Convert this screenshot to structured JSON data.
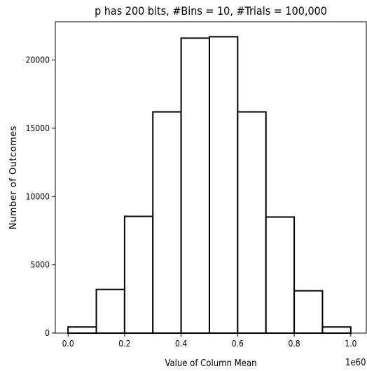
{
  "chart_data": {
    "type": "bar",
    "title": "p has 200 bits, #Bins = 10, #Trials = 100,000",
    "xlabel": "Value of Column Mean",
    "ylabel": "Number of Outcomes",
    "x_offset_label": "1e60",
    "bin_edges": [
      0.0,
      0.1,
      0.2,
      0.3,
      0.4,
      0.5,
      0.6,
      0.7,
      0.8,
      0.9,
      1.0
    ],
    "values": [
      450,
      3200,
      8550,
      16200,
      21600,
      21700,
      16200,
      8500,
      3100,
      450
    ],
    "xlim": [
      -0.045,
      1.055
    ],
    "ylim": [
      0,
      22800
    ],
    "x_ticks": [
      {
        "value": 0.0,
        "label": "0.0"
      },
      {
        "value": 0.2,
        "label": "0.2"
      },
      {
        "value": 0.4,
        "label": "0.4"
      },
      {
        "value": 0.6,
        "label": "0.6"
      },
      {
        "value": 0.8,
        "label": "0.8"
      },
      {
        "value": 1.0,
        "label": "1.0"
      }
    ],
    "y_ticks": [
      {
        "value": 0,
        "label": "0"
      },
      {
        "value": 5000,
        "label": "5000"
      },
      {
        "value": 10000,
        "label": "10000"
      },
      {
        "value": 15000,
        "label": "15000"
      },
      {
        "value": 20000,
        "label": "20000"
      }
    ],
    "bar_fill": "#ffffff",
    "bar_edge": "#000000",
    "grid": false
  }
}
